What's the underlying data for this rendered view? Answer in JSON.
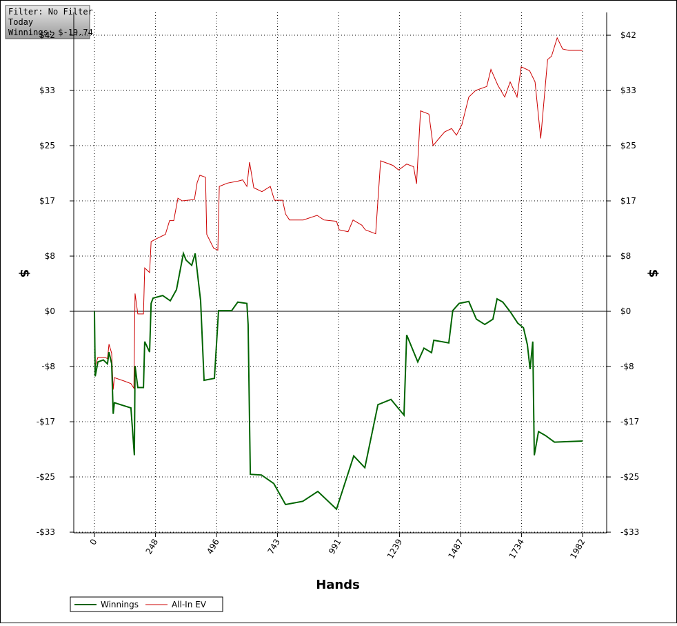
{
  "chart_data": {
    "type": "line",
    "info": [
      "Filter: No Filter",
      "Today",
      "Winnings: $-19.74"
    ],
    "x_label": "Hands",
    "y_label": "$",
    "xlim": [
      -84,
      2080
    ],
    "xticks": [
      0,
      248,
      496,
      743,
      991,
      1239,
      1487,
      1734,
      1982
    ],
    "ylim": [
      -33.7,
      45.47
    ],
    "yticks": [
      {
        "value": -33.6,
        "label": "-$33"
      },
      {
        "value": -25.2,
        "label": "-$25"
      },
      {
        "value": -16.8,
        "label": "-$17"
      },
      {
        "value": -8.4,
        "label": "-$8"
      },
      {
        "value": 0,
        "label": "$0"
      },
      {
        "value": 8.4,
        "label": "$8"
      },
      {
        "value": 16.8,
        "label": "$17"
      },
      {
        "value": 25.2,
        "label": "$25"
      },
      {
        "value": 33.6,
        "label": "$33"
      },
      {
        "value": 42,
        "label": "$42"
      }
    ],
    "grid": true,
    "legend": "bottom-left",
    "series": [
      {
        "name": "Winnings",
        "color": "#006400",
        "x": [
          0,
          3,
          14,
          36,
          53,
          59,
          70,
          76,
          81,
          106,
          148,
          162,
          165,
          176,
          199,
          204,
          224,
          230,
          238,
          277,
          308,
          333,
          361,
          372,
          395,
          409,
          431,
          445,
          487,
          504,
          557,
          582,
          619,
          624,
          633,
          678,
          728,
          776,
          846,
          907,
          983,
          1053,
          1098,
          1151,
          1204,
          1257,
          1268,
          1313,
          1338,
          1369,
          1378,
          1439,
          1455,
          1481,
          1520,
          1551,
          1585,
          1618,
          1635,
          1658,
          1689,
          1719,
          1742,
          1758,
          1769,
          1780,
          1786,
          1803,
          1831,
          1868,
          1982
        ],
        "values": [
          0,
          -9.9,
          -7.7,
          -7.4,
          -8.0,
          -6.2,
          -8.0,
          -15.6,
          -13.9,
          -14.2,
          -14.7,
          -21.9,
          -8.3,
          -11.6,
          -11.6,
          -4.6,
          -6.2,
          1.2,
          2.0,
          2.4,
          1.6,
          3.3,
          8.8,
          7.8,
          7.0,
          8.8,
          1.6,
          -10.5,
          -10.2,
          0.1,
          0.1,
          1.4,
          1.2,
          -2.0,
          -24.8,
          -24.9,
          -26.2,
          -29.4,
          -28.9,
          -27.4,
          -30.1,
          -22.0,
          -23.8,
          -14.2,
          -13.4,
          -15.8,
          -3.6,
          -7.7,
          -5.6,
          -6.3,
          -4.4,
          -4.8,
          0.1,
          1.2,
          1.5,
          -1.2,
          -2.0,
          -1.2,
          1.9,
          1.4,
          -0.1,
          -1.8,
          -2.5,
          -5.1,
          -8.8,
          -4.6,
          -21.9,
          -18.3,
          -18.9,
          -19.9,
          -19.74
        ]
      },
      {
        "name": "All-In EV",
        "color": "#cc0000",
        "x": [
          0,
          3,
          14,
          42,
          53,
          59,
          70,
          76,
          81,
          120,
          148,
          160,
          165,
          176,
          199,
          204,
          224,
          230,
          255,
          288,
          305,
          322,
          339,
          356,
          406,
          417,
          428,
          451,
          456,
          484,
          501,
          507,
          540,
          582,
          602,
          619,
          630,
          647,
          680,
          714,
          731,
          764,
          776,
          792,
          848,
          904,
          932,
          983,
          994,
          1030,
          1050,
          1086,
          1100,
          1142,
          1162,
          1212,
          1235,
          1268,
          1296,
          1308,
          1324,
          1358,
          1375,
          1397,
          1422,
          1450,
          1470,
          1492,
          1520,
          1548,
          1593,
          1610,
          1638,
          1666,
          1688,
          1716,
          1733,
          1767,
          1789,
          1812,
          1823,
          1840,
          1856,
          1879,
          1901,
          1926,
          1982
        ],
        "values": [
          0,
          -8.3,
          -7.0,
          -7.0,
          -7.2,
          -5.0,
          -6.4,
          -11.9,
          -10.1,
          -10.6,
          -11.0,
          -11.7,
          2.7,
          -0.4,
          -0.4,
          6.6,
          5.9,
          10.6,
          11.1,
          11.7,
          13.8,
          13.8,
          17.2,
          16.8,
          17.0,
          19.6,
          20.7,
          20.4,
          11.7,
          9.6,
          9.3,
          19.0,
          19.5,
          19.8,
          20.0,
          19.0,
          22.7,
          18.8,
          18.2,
          19.0,
          16.9,
          16.9,
          14.8,
          13.9,
          13.9,
          14.6,
          13.9,
          13.7,
          12.4,
          12.1,
          13.9,
          13.1,
          12.4,
          11.8,
          22.9,
          22.2,
          21.5,
          22.4,
          22.0,
          19.4,
          30.5,
          30.0,
          25.2,
          26.2,
          27.3,
          27.8,
          26.8,
          28.4,
          32.6,
          33.6,
          34.2,
          36.8,
          34.4,
          32.6,
          34.9,
          32.6,
          37.2,
          36.6,
          34.9,
          26.3,
          31.0,
          38.3,
          38.8,
          41.6,
          39.9,
          39.7,
          39.7
        ]
      }
    ]
  }
}
